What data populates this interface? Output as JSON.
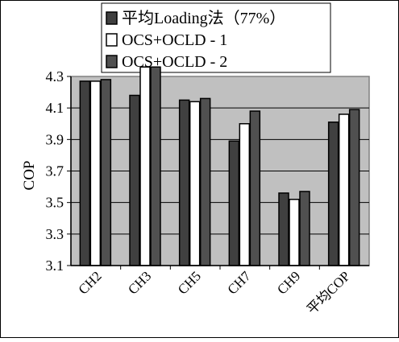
{
  "chart_data": {
    "type": "bar",
    "title": "",
    "xlabel": "",
    "ylabel": "COP",
    "ylim": [
      3.1,
      4.3
    ],
    "yticks": [
      3.1,
      3.3,
      3.5,
      3.7,
      3.9,
      4.1,
      4.3
    ],
    "grid": true,
    "legend_position": "top",
    "categories": [
      "CH2",
      "CH3",
      "CH5",
      "CH7",
      "CH9",
      "平均COP"
    ],
    "series": [
      {
        "name": "平均Loading法（77%）",
        "color": "#404040",
        "values": [
          4.27,
          4.18,
          4.15,
          3.89,
          3.56,
          4.01
        ]
      },
      {
        "name": "OCS+OCLD - 1",
        "color": "#ffffff",
        "values": [
          4.27,
          4.36,
          4.14,
          4.0,
          3.52,
          4.06
        ]
      },
      {
        "name": "OCS+OCLD - 2",
        "color": "#505050",
        "values": [
          4.28,
          4.36,
          4.16,
          4.08,
          3.57,
          4.09
        ]
      }
    ],
    "plot_background": "#c0c0c0"
  }
}
